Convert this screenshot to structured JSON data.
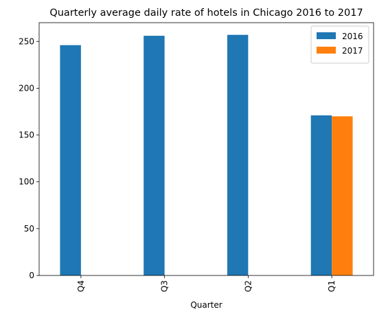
{
  "chart_data": {
    "type": "bar",
    "title": "Quarterly average daily rate of hotels in Chicago 2016 to 2017",
    "xlabel": "Quarter",
    "ylabel": "",
    "categories": [
      "Q4",
      "Q3",
      "Q2",
      "Q1"
    ],
    "series": [
      {
        "name": "2016",
        "color": "#1f77b4",
        "values": [
          246,
          256,
          257,
          171
        ]
      },
      {
        "name": "2017",
        "color": "#ff7f0e",
        "values": [
          null,
          null,
          null,
          170
        ]
      }
    ],
    "ylim": [
      0,
      270
    ],
    "yticks": [
      0,
      50,
      100,
      150,
      200,
      250
    ],
    "grid": false,
    "legend": "top-right",
    "xtick_rotation": 90
  }
}
